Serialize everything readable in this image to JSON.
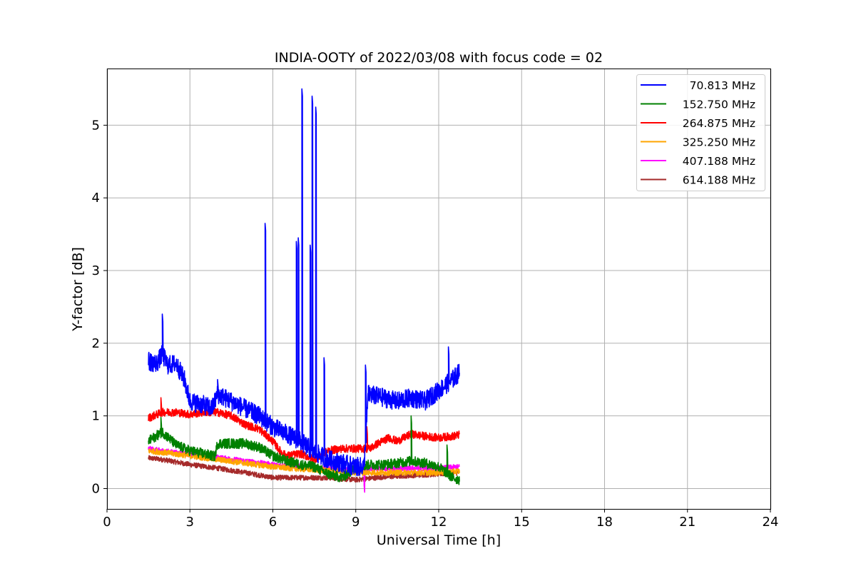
{
  "chart_data": {
    "type": "line",
    "title": "INDIA-OOTY of 2022/03/08 with focus code = 02",
    "xlabel": "Universal Time [h]",
    "ylabel": "Y-factor [dB]",
    "xlim": [
      0,
      24
    ],
    "ylim": [
      -0.28,
      5.78
    ],
    "xticks": [
      0,
      3,
      6,
      9,
      12,
      15,
      18,
      21,
      24
    ],
    "yticks": [
      0,
      1,
      2,
      3,
      4,
      5
    ],
    "grid": true,
    "legend_position": "top-right",
    "series": [
      {
        "name": "70.813 MHz",
        "color": "#0000ff",
        "noise": 0.13,
        "points": [
          [
            1.5,
            1.75
          ],
          [
            1.8,
            1.72
          ],
          [
            2.0,
            1.85
          ],
          [
            2.2,
            1.7
          ],
          [
            2.5,
            1.72
          ],
          [
            2.8,
            1.5
          ],
          [
            3.0,
            1.2
          ],
          [
            3.5,
            1.15
          ],
          [
            3.8,
            1.1
          ],
          [
            4.0,
            1.3
          ],
          [
            4.5,
            1.2
          ],
          [
            5.0,
            1.1
          ],
          [
            5.5,
            1.0
          ],
          [
            6.0,
            0.85
          ],
          [
            6.5,
            0.75
          ],
          [
            7.0,
            0.65
          ],
          [
            7.5,
            0.5
          ],
          [
            8.0,
            0.4
          ],
          [
            8.5,
            0.35
          ],
          [
            9.0,
            0.3
          ],
          [
            9.3,
            0.3
          ],
          [
            9.45,
            1.3
          ],
          [
            10.0,
            1.25
          ],
          [
            10.5,
            1.2
          ],
          [
            11.0,
            1.25
          ],
          [
            11.5,
            1.2
          ],
          [
            12.0,
            1.35
          ],
          [
            12.5,
            1.5
          ],
          [
            12.75,
            1.6
          ]
        ],
        "spikes": [
          [
            2.0,
            2.4
          ],
          [
            4.0,
            1.5
          ],
          [
            5.72,
            3.65
          ],
          [
            6.85,
            3.4
          ],
          [
            6.92,
            3.45
          ],
          [
            7.05,
            5.5
          ],
          [
            7.35,
            3.35
          ],
          [
            7.42,
            5.4
          ],
          [
            7.55,
            5.25
          ],
          [
            7.85,
            1.8
          ],
          [
            9.35,
            1.7
          ],
          [
            12.35,
            1.95
          ]
        ]
      },
      {
        "name": "152.750 MHz",
        "color": "#008000",
        "noise": 0.07,
        "points": [
          [
            1.5,
            0.65
          ],
          [
            2.0,
            0.78
          ],
          [
            2.5,
            0.6
          ],
          [
            3.0,
            0.52
          ],
          [
            3.5,
            0.48
          ],
          [
            3.9,
            0.44
          ],
          [
            4.0,
            0.62
          ],
          [
            4.5,
            0.62
          ],
          [
            5.0,
            0.62
          ],
          [
            5.5,
            0.57
          ],
          [
            6.0,
            0.45
          ],
          [
            6.5,
            0.38
          ],
          [
            7.0,
            0.33
          ],
          [
            7.5,
            0.3
          ],
          [
            8.0,
            0.2
          ],
          [
            8.5,
            0.15
          ],
          [
            9.0,
            0.28
          ],
          [
            9.5,
            0.33
          ],
          [
            10.0,
            0.33
          ],
          [
            10.5,
            0.35
          ],
          [
            11.0,
            0.38
          ],
          [
            11.5,
            0.35
          ],
          [
            12.0,
            0.3
          ],
          [
            12.5,
            0.15
          ],
          [
            12.75,
            0.12
          ]
        ],
        "spikes": [
          [
            1.95,
            0.98
          ],
          [
            11.0,
            1.0
          ],
          [
            12.3,
            0.6
          ]
        ]
      },
      {
        "name": "264.875 MHz",
        "color": "#ff0000",
        "noise": 0.055,
        "points": [
          [
            1.5,
            0.97
          ],
          [
            2.0,
            1.05
          ],
          [
            2.5,
            1.05
          ],
          [
            3.0,
            1.02
          ],
          [
            3.5,
            1.05
          ],
          [
            4.0,
            1.05
          ],
          [
            4.5,
            1.0
          ],
          [
            5.0,
            0.88
          ],
          [
            5.5,
            0.82
          ],
          [
            6.0,
            0.65
          ],
          [
            6.3,
            0.5
          ],
          [
            6.5,
            0.45
          ],
          [
            7.0,
            0.48
          ],
          [
            7.5,
            0.4
          ],
          [
            8.0,
            0.52
          ],
          [
            8.5,
            0.55
          ],
          [
            9.0,
            0.55
          ],
          [
            9.5,
            0.55
          ],
          [
            9.8,
            0.62
          ],
          [
            10.2,
            0.7
          ],
          [
            10.5,
            0.65
          ],
          [
            11.0,
            0.75
          ],
          [
            11.5,
            0.72
          ],
          [
            12.0,
            0.7
          ],
          [
            12.5,
            0.72
          ],
          [
            12.75,
            0.74
          ]
        ],
        "spikes": [
          [
            1.95,
            1.25
          ],
          [
            9.4,
            0.85
          ]
        ]
      },
      {
        "name": "325.250 MHz",
        "color": "#ffa500",
        "noise": 0.04,
        "points": [
          [
            1.5,
            0.52
          ],
          [
            2.0,
            0.5
          ],
          [
            3.0,
            0.45
          ],
          [
            4.0,
            0.4
          ],
          [
            5.0,
            0.35
          ],
          [
            6.0,
            0.3
          ],
          [
            7.0,
            0.27
          ],
          [
            8.0,
            0.25
          ],
          [
            9.0,
            0.22
          ],
          [
            10.0,
            0.22
          ],
          [
            11.0,
            0.22
          ],
          [
            12.0,
            0.22
          ],
          [
            12.75,
            0.24
          ]
        ],
        "spikes": []
      },
      {
        "name": "407.188 MHz",
        "color": "#ff00ff",
        "noise": 0.035,
        "points": [
          [
            1.5,
            0.55
          ],
          [
            2.0,
            0.52
          ],
          [
            3.0,
            0.47
          ],
          [
            4.0,
            0.43
          ],
          [
            5.0,
            0.38
          ],
          [
            6.0,
            0.33
          ],
          [
            7.0,
            0.3
          ],
          [
            8.0,
            0.27
          ],
          [
            9.0,
            0.26
          ],
          [
            10.0,
            0.27
          ],
          [
            11.0,
            0.28
          ],
          [
            12.0,
            0.28
          ],
          [
            12.75,
            0.3
          ]
        ],
        "spikes": [
          [
            9.3,
            0.05
          ]
        ]
      },
      {
        "name": "614.188 MHz",
        "color": "#a52a2a",
        "noise": 0.035,
        "points": [
          [
            1.5,
            0.42
          ],
          [
            2.0,
            0.4
          ],
          [
            3.0,
            0.33
          ],
          [
            4.0,
            0.28
          ],
          [
            5.0,
            0.22
          ],
          [
            6.0,
            0.15
          ],
          [
            7.0,
            0.15
          ],
          [
            8.0,
            0.15
          ],
          [
            9.0,
            0.12
          ],
          [
            10.0,
            0.16
          ],
          [
            11.0,
            0.18
          ],
          [
            12.0,
            0.2
          ],
          [
            12.75,
            0.22
          ]
        ],
        "spikes": []
      }
    ]
  }
}
